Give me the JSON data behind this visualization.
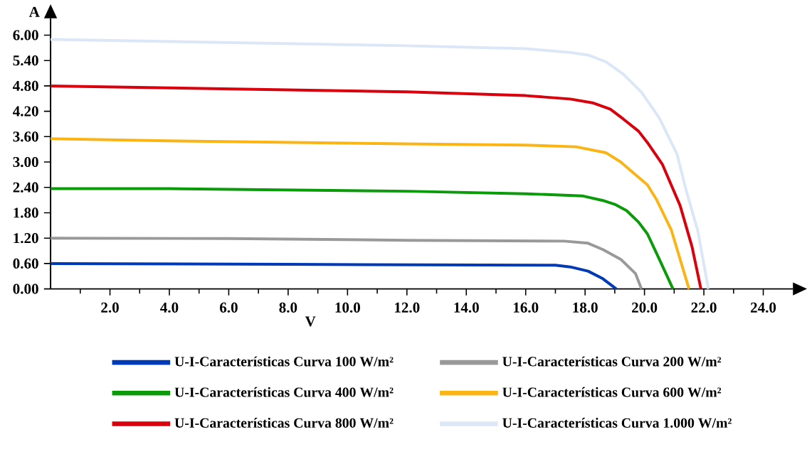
{
  "chart_data": {
    "type": "line",
    "xlabel": "V",
    "ylabel": "A",
    "xlim": [
      0,
      25
    ],
    "ylim": [
      0,
      6.4
    ],
    "xticks": [
      {
        "value": 1,
        "label": null
      },
      {
        "value": 2,
        "label": "2.0"
      },
      {
        "value": 3,
        "label": null
      },
      {
        "value": 4,
        "label": "4.0"
      },
      {
        "value": 5,
        "label": null
      },
      {
        "value": 6,
        "label": "6.0"
      },
      {
        "value": 7,
        "label": null
      },
      {
        "value": 8,
        "label": "8.0"
      },
      {
        "value": 9,
        "label": null
      },
      {
        "value": 10,
        "label": "10.0"
      },
      {
        "value": 11,
        "label": null
      },
      {
        "value": 12,
        "label": "12.0"
      },
      {
        "value": 13,
        "label": null
      },
      {
        "value": 14,
        "label": "14.0"
      },
      {
        "value": 15,
        "label": null
      },
      {
        "value": 16,
        "label": "16.0"
      },
      {
        "value": 17,
        "label": null
      },
      {
        "value": 18,
        "label": "18.0"
      },
      {
        "value": 19,
        "label": null
      },
      {
        "value": 20,
        "label": "20.0"
      },
      {
        "value": 21,
        "label": null
      },
      {
        "value": 22,
        "label": "22.0"
      },
      {
        "value": 23,
        "label": null
      },
      {
        "value": 24,
        "label": "24.0"
      }
    ],
    "yticks": [
      {
        "value": 0,
        "label": "0.00"
      },
      {
        "value": 0.6,
        "label": "0.60"
      },
      {
        "value": 1.2,
        "label": "1.20"
      },
      {
        "value": 1.8,
        "label": "1.80"
      },
      {
        "value": 2.4,
        "label": "2.40"
      },
      {
        "value": 3.0,
        "label": "3.00"
      },
      {
        "value": 3.6,
        "label": "3.60"
      },
      {
        "value": 4.2,
        "label": "4.20"
      },
      {
        "value": 4.8,
        "label": "4.80"
      },
      {
        "value": 5.4,
        "label": "5.40"
      },
      {
        "value": 6.0,
        "label": "6.00"
      }
    ],
    "legend": "bottom",
    "marker": "none",
    "line_style": "solid",
    "series": [
      {
        "name": "U-I-Características Curva 100 W/m²",
        "color": "#0039b5",
        "x": [
          0,
          8,
          17.0,
          17.5,
          18.1,
          18.6,
          19.05
        ],
        "values": [
          0.6,
          0.58,
          0.56,
          0.52,
          0.42,
          0.24,
          0
        ]
      },
      {
        "name": "U-I-Características Curva 200 W/m²",
        "color": "#999999",
        "x": [
          0,
          6,
          12,
          17.3,
          18.1,
          18.6,
          19.2,
          19.7,
          19.9
        ],
        "values": [
          1.2,
          1.19,
          1.15,
          1.13,
          1.08,
          0.93,
          0.7,
          0.36,
          0
        ]
      },
      {
        "name": "U-I-Características Curva 400 W/m²",
        "color": "#0a9a0a",
        "x": [
          0,
          4,
          12,
          16.0,
          17.9,
          18.6,
          19.0,
          19.4,
          19.8,
          20.1,
          20.5,
          20.96
        ],
        "values": [
          2.37,
          2.37,
          2.31,
          2.25,
          2.2,
          2.09,
          2.0,
          1.85,
          1.58,
          1.3,
          0.7,
          0
        ]
      },
      {
        "name": "U-I-Características Curva 600 W/m²",
        "color": "#fbb416",
        "x": [
          0,
          4,
          12,
          16,
          17.7,
          18.7,
          19.2,
          19.7,
          20.1,
          20.4,
          20.9,
          21.5
        ],
        "values": [
          3.55,
          3.5,
          3.43,
          3.4,
          3.36,
          3.22,
          3.0,
          2.7,
          2.46,
          2.12,
          1.4,
          0
        ]
      },
      {
        "name": "U-I-Características Curva 800 W/m²",
        "color": "#d9000d",
        "x": [
          0,
          12,
          16,
          17.5,
          18.25,
          18.85,
          19.3,
          19.8,
          20.1,
          20.6,
          20.9,
          21.2,
          21.6,
          21.9
        ],
        "values": [
          4.8,
          4.66,
          4.57,
          4.49,
          4.4,
          4.25,
          4.01,
          3.73,
          3.46,
          2.95,
          2.46,
          1.97,
          1.0,
          0
        ]
      },
      {
        "name": "U-I-Características Curva 1.000 W/m²",
        "color": "#dbe7f7",
        "x": [
          0,
          12,
          16,
          17.5,
          18.1,
          18.7,
          19.3,
          19.9,
          20.5,
          21.1,
          21.4,
          21.8,
          22.15
        ],
        "values": [
          5.9,
          5.75,
          5.68,
          5.59,
          5.53,
          5.37,
          5.07,
          4.65,
          4.04,
          3.18,
          2.34,
          1.36,
          0
        ]
      }
    ]
  }
}
